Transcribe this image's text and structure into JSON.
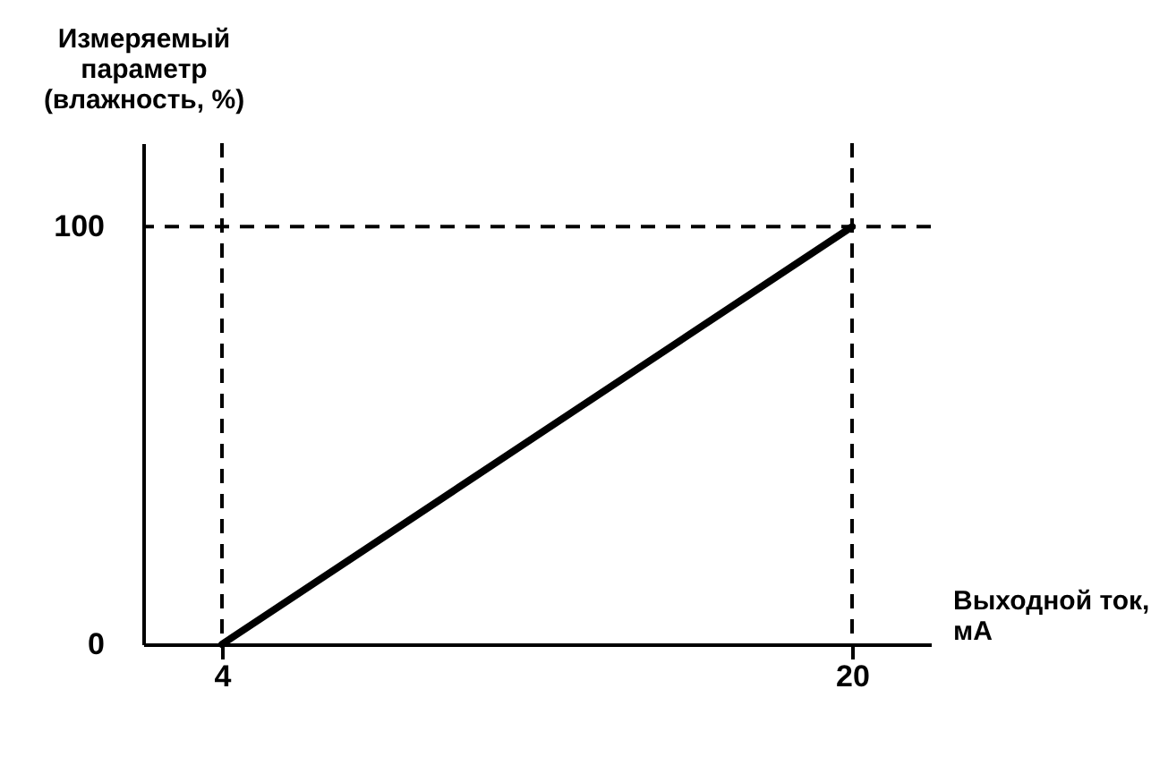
{
  "chart_data": {
    "type": "line",
    "xlabel": "Выходной ток,\nмА",
    "ylabel": "Измеряемый\nпараметр\n(влажность, %)",
    "x": [
      4,
      20
    ],
    "series": [
      {
        "color": "#000000",
        "values": [
          0,
          100
        ]
      }
    ],
    "xlim": [
      2,
      22
    ],
    "ylim": [
      0,
      120
    ],
    "xticks": [
      4,
      20
    ],
    "yticks": [
      0,
      100
    ],
    "ref_lines": [
      {
        "axis": "x",
        "value": 4,
        "color": "#000000",
        "line_style": "dashed"
      },
      {
        "axis": "x",
        "value": 20,
        "color": "#000000",
        "line_style": "dashed"
      },
      {
        "axis": "y",
        "value": 100,
        "color": "#000000",
        "line_style": "dashed"
      }
    ],
    "grid": false,
    "marker": "none",
    "line_style": "solid"
  }
}
